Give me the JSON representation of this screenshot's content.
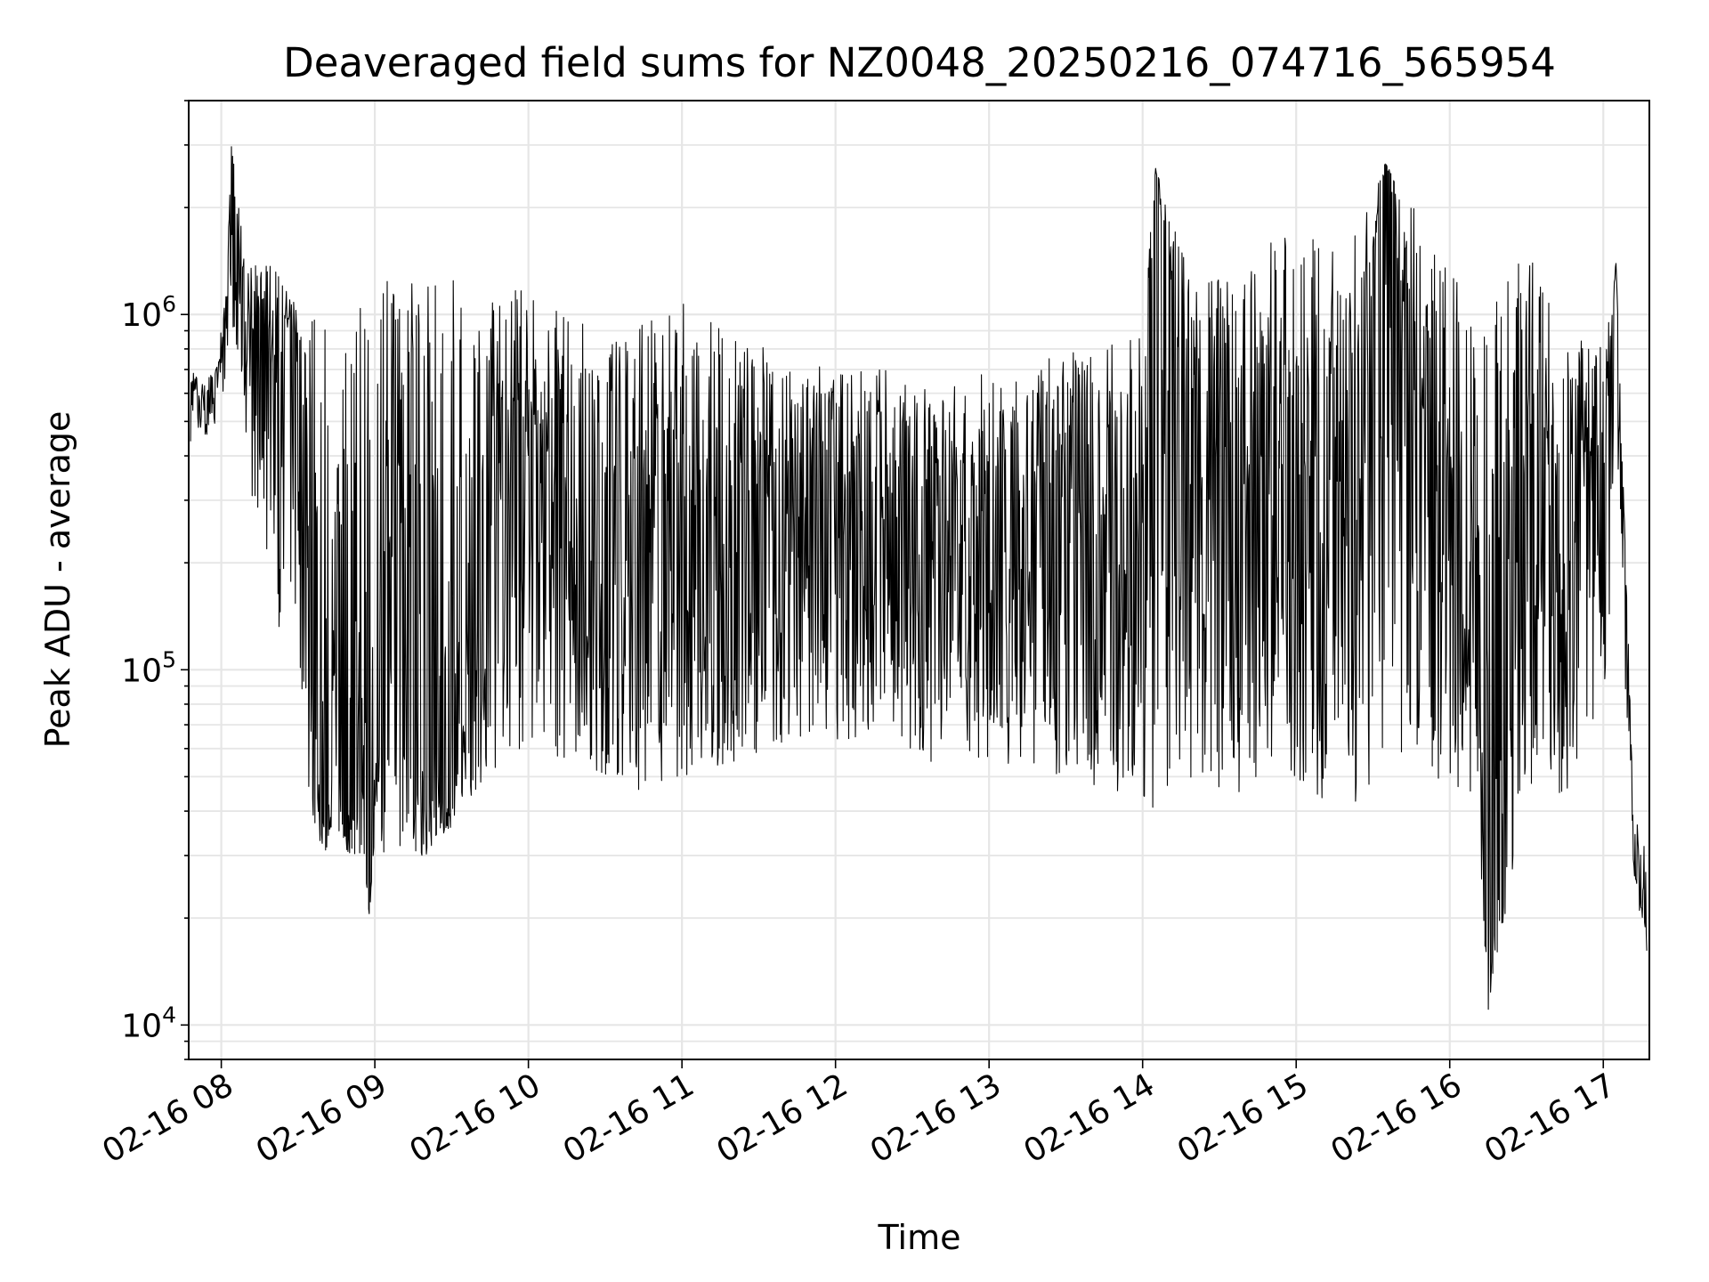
{
  "chart_data": {
    "type": "line",
    "title": "Deaveraged field sums for NZ0048_20250216_074716_565954",
    "xlabel": "Time",
    "ylabel": "Peak ADU - average",
    "xlim": [
      "2025-02-16T07:47:16",
      "2025-02-16T17:18:00"
    ],
    "ylim": [
      8000,
      4000000
    ],
    "yscale": "log",
    "grid": true,
    "line_color": "#000000",
    "x_ticks": [
      {
        "value": "2025-02-16T08:00",
        "label": "02-16 08"
      },
      {
        "value": "2025-02-16T09:00",
        "label": "02-16 09"
      },
      {
        "value": "2025-02-16T10:00",
        "label": "02-16 10"
      },
      {
        "value": "2025-02-16T11:00",
        "label": "02-16 11"
      },
      {
        "value": "2025-02-16T12:00",
        "label": "02-16 12"
      },
      {
        "value": "2025-02-16T13:00",
        "label": "02-16 13"
      },
      {
        "value": "2025-02-16T14:00",
        "label": "02-16 14"
      },
      {
        "value": "2025-02-16T15:00",
        "label": "02-16 15"
      },
      {
        "value": "2025-02-16T16:00",
        "label": "02-16 16"
      },
      {
        "value": "2025-02-16T17:00",
        "label": "02-16 17"
      }
    ],
    "y_ticks": [
      {
        "value": 10000,
        "base": "10",
        "exp": "4"
      },
      {
        "value": 100000,
        "base": "10",
        "exp": "5"
      },
      {
        "value": 1000000,
        "base": "10",
        "exp": "6"
      }
    ],
    "series": [
      {
        "x": [
          "2025-02-16T07:48",
          "2025-02-16T07:53",
          "2025-02-16T07:58",
          "2025-02-16T08:02",
          "2025-02-16T08:04",
          "2025-02-16T08:10",
          "2025-02-16T08:15",
          "2025-02-16T08:20",
          "2025-02-16T08:25",
          "2025-02-16T08:30",
          "2025-02-16T08:35",
          "2025-02-16T08:40",
          "2025-02-16T08:45",
          "2025-02-16T08:50",
          "2025-02-16T08:55",
          "2025-02-16T08:58",
          "2025-02-16T09:00",
          "2025-02-16T09:10",
          "2025-02-16T09:20",
          "2025-02-16T09:30",
          "2025-02-16T09:40",
          "2025-02-16T09:50",
          "2025-02-16T10:00",
          "2025-02-16T10:15",
          "2025-02-16T10:30",
          "2025-02-16T10:45",
          "2025-02-16T11:00",
          "2025-02-16T11:20",
          "2025-02-16T11:40",
          "2025-02-16T12:00",
          "2025-02-16T12:20",
          "2025-02-16T12:40",
          "2025-02-16T13:00",
          "2025-02-16T13:20",
          "2025-02-16T13:40",
          "2025-02-16T14:00",
          "2025-02-16T14:05",
          "2025-02-16T14:20",
          "2025-02-16T14:40",
          "2025-02-16T15:00",
          "2025-02-16T15:20",
          "2025-02-16T15:35",
          "2025-02-16T15:50",
          "2025-02-16T16:10",
          "2025-02-16T16:15",
          "2025-02-16T16:30",
          "2025-02-16T16:45",
          "2025-02-16T17:00",
          "2025-02-16T17:05",
          "2025-02-16T17:12",
          "2025-02-16T17:17"
        ],
        "y": [
          600000,
          550000,
          620000,
          900000,
          3000000,
          600000,
          1000000,
          700000,
          900000,
          800000,
          100000,
          40000,
          60000,
          35000,
          50000,
          20000,
          60000,
          200000,
          50000,
          40000,
          200000,
          500000,
          300000,
          250000,
          150000,
          200000,
          250000,
          180000,
          200000,
          230000,
          260000,
          200000,
          240000,
          210000,
          220000,
          200000,
          2600000,
          250000,
          400000,
          300000,
          250000,
          2700000,
          300000,
          200000,
          11000,
          350000,
          250000,
          300000,
          1400000,
          30000,
          18000
        ],
        "band_high": [
          700000,
          650000,
          700000,
          1200000,
          3000000,
          1300000,
          1500000,
          1400000,
          1200000,
          1100000,
          1000000,
          1300000,
          1200000,
          1300000,
          1400000,
          1200000,
          1200000,
          1300000,
          1300000,
          1400000,
          1300000,
          1200000,
          1200000,
          1000000,
          1000000,
          950000,
          1100000,
          900000,
          750000,
          700000,
          700000,
          650000,
          700000,
          750000,
          800000,
          900000,
          2600000,
          1200000,
          1500000,
          1700000,
          1500000,
          2700000,
          1800000,
          1000000,
          1000000,
          1700000,
          900000,
          800000,
          1400000,
          40000,
          30000
        ],
        "band_low": [
          430000,
          450000,
          480000,
          600000,
          900000,
          350000,
          250000,
          150000,
          100000,
          70000,
          40000,
          30000,
          35000,
          30000,
          30000,
          20000,
          30000,
          30000,
          30000,
          35000,
          45000,
          55000,
          60000,
          55000,
          50000,
          45000,
          50000,
          55000,
          60000,
          60000,
          55000,
          55000,
          55000,
          50000,
          45000,
          45000,
          35000,
          45000,
          45000,
          45000,
          40000,
          50000,
          50000,
          45000,
          11000,
          45000,
          45000,
          55000,
          300000,
          25000,
          16000
        ]
      }
    ]
  }
}
